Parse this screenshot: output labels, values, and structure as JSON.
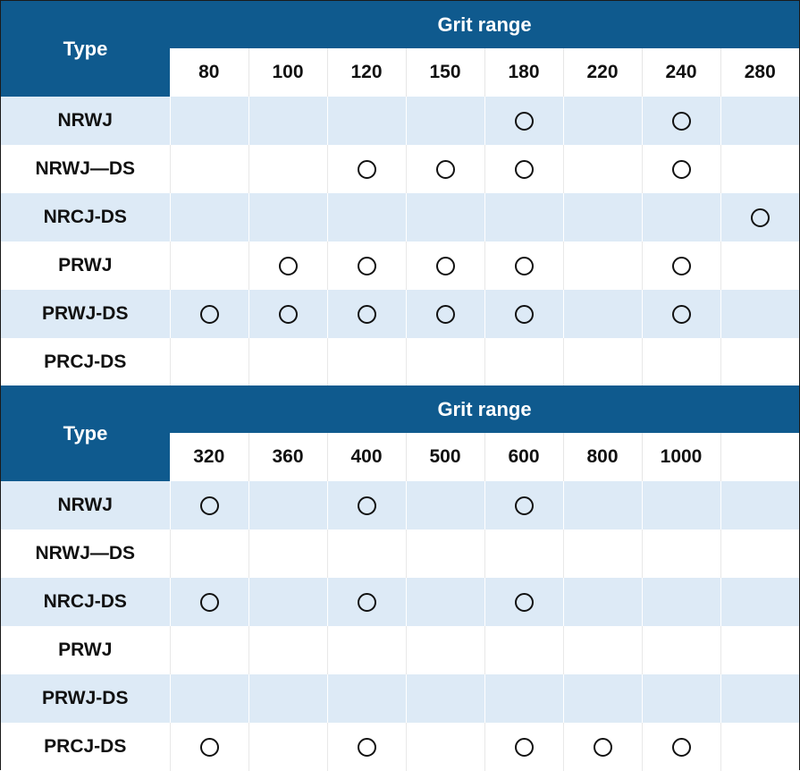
{
  "colors": {
    "header_bg": "#0f5a8e",
    "stripe": "#ddeaf6",
    "mark": "#111111"
  },
  "mark_icon": "circle-mark-icon",
  "tables": [
    {
      "type_header": "Type",
      "range_header": "Grit range",
      "grits": [
        "80",
        "100",
        "120",
        "150",
        "180",
        "220",
        "240",
        "280"
      ],
      "rows": [
        {
          "type": "NRWJ",
          "marks": [
            false,
            false,
            false,
            false,
            true,
            false,
            true,
            false
          ]
        },
        {
          "type": "NRWJ—DS",
          "marks": [
            false,
            false,
            true,
            true,
            true,
            false,
            true,
            false
          ]
        },
        {
          "type": "NRCJ-DS",
          "marks": [
            false,
            false,
            false,
            false,
            false,
            false,
            false,
            true
          ]
        },
        {
          "type": "PRWJ",
          "marks": [
            false,
            true,
            true,
            true,
            true,
            false,
            true,
            false
          ]
        },
        {
          "type": "PRWJ-DS",
          "marks": [
            true,
            true,
            true,
            true,
            true,
            false,
            true,
            false
          ]
        },
        {
          "type": "PRCJ-DS",
          "marks": [
            false,
            false,
            false,
            false,
            false,
            false,
            false,
            false
          ]
        }
      ]
    },
    {
      "type_header": "Type",
      "range_header": "Grit range",
      "grits": [
        "320",
        "360",
        "400",
        "500",
        "600",
        "800",
        "1000",
        ""
      ],
      "rows": [
        {
          "type": "NRWJ",
          "marks": [
            true,
            false,
            true,
            false,
            true,
            false,
            false,
            false
          ]
        },
        {
          "type": "NRWJ—DS",
          "marks": [
            false,
            false,
            false,
            false,
            false,
            false,
            false,
            false
          ]
        },
        {
          "type": "NRCJ-DS",
          "marks": [
            true,
            false,
            true,
            false,
            true,
            false,
            false,
            false
          ]
        },
        {
          "type": "PRWJ",
          "marks": [
            false,
            false,
            false,
            false,
            false,
            false,
            false,
            false
          ]
        },
        {
          "type": "PRWJ-DS",
          "marks": [
            false,
            false,
            false,
            false,
            false,
            false,
            false,
            false
          ]
        },
        {
          "type": "PRCJ-DS",
          "marks": [
            true,
            false,
            true,
            false,
            true,
            true,
            true,
            false
          ]
        }
      ]
    }
  ]
}
